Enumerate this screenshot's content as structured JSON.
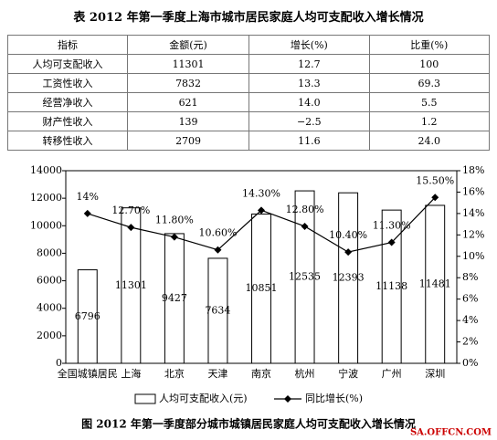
{
  "table": {
    "title": "表 2012 年第一季度上海市城市居民家庭人均可支配收入增长情况",
    "header": [
      "指标",
      "金额(元)",
      "增长(%)",
      "比重(%)"
    ],
    "rows": [
      [
        "人均可支配收入",
        "11301",
        "12.7",
        "100"
      ],
      [
        "工资性收入",
        "7832",
        "13.3",
        "69.3"
      ],
      [
        "经营净收入",
        "621",
        "14.0",
        "5.5"
      ],
      [
        "财产性收入",
        "139",
        "−2.5",
        "1.2"
      ],
      [
        "转移性收入",
        "2709",
        "11.6",
        "24.0"
      ]
    ]
  },
  "chart_data": {
    "type": "bar-line",
    "caption": "图 2012 年第一季度部分城市城镇居民家庭人均可支配收入增长情况",
    "categories": [
      "全国城镇居民",
      "上海",
      "北京",
      "天津",
      "南京",
      "杭州",
      "宁波",
      "广州",
      "深圳"
    ],
    "series": [
      {
        "name": "人均可支配收入(元)",
        "type": "bar",
        "color": "#ffffff",
        "values": [
          6796,
          11301,
          9427,
          7634,
          10851,
          12535,
          12393,
          11138,
          11481
        ]
      },
      {
        "name": "同比增长(%)",
        "type": "line",
        "axis": "y2",
        "color": "#000000",
        "values": [
          14,
          12.7,
          11.8,
          10.6,
          14.3,
          12.8,
          10.4,
          11.3,
          15.5
        ],
        "value_labels": [
          "14%",
          "12.70%",
          "11.80%",
          "10.60%",
          "14.30%",
          "12.80%",
          "10.40%",
          "11.30%",
          "15.50%"
        ]
      }
    ],
    "ylim": [
      0,
      14000
    ],
    "yticks": [
      0,
      2000,
      4000,
      6000,
      8000,
      10000,
      12000,
      14000
    ],
    "y2lim": [
      0,
      18
    ],
    "y2ticks": [
      {
        "value": 0,
        "label": "0%"
      },
      {
        "value": 2,
        "label": "2%"
      },
      {
        "value": 4,
        "label": "4%"
      },
      {
        "value": 6,
        "label": "6%"
      },
      {
        "value": 8,
        "label": "8%"
      },
      {
        "value": 10,
        "label": "10%"
      },
      {
        "value": 12,
        "label": "12%"
      },
      {
        "value": 14,
        "label": "14%"
      },
      {
        "value": 16,
        "label": "16%"
      },
      {
        "value": 18,
        "label": "18%"
      }
    ],
    "watermark": "SA.OFFCN.COM"
  }
}
